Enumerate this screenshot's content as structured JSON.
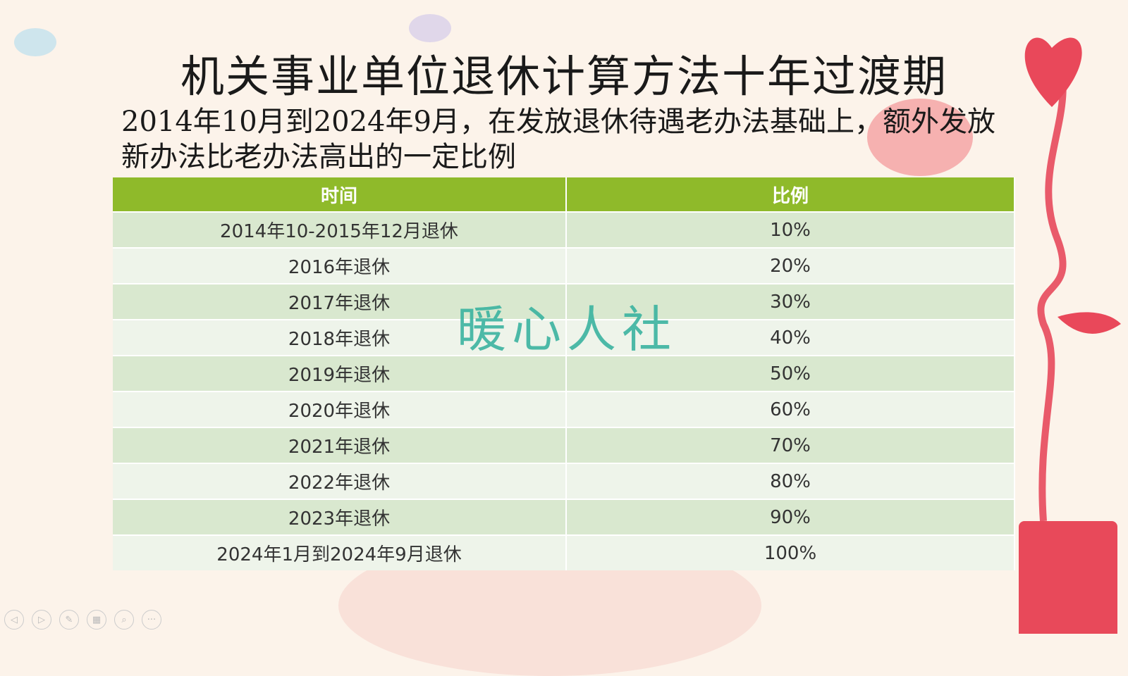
{
  "slide": {
    "title": "机关事业单位退休计算方法十年过渡期",
    "subtitle": "2014年10月到2024年9月，在发放退休待遇老办法基础上，额外发放新办法比老办法高出的一定比例",
    "watermark": "暖心人社",
    "colors": {
      "header": "#8fba2a",
      "row_odd": "#d9e8cf",
      "row_even": "#eef4ea",
      "watermark": "#3bb3a0"
    }
  },
  "table": {
    "headers": [
      "时间",
      "比例"
    ],
    "rows": [
      [
        "2014年10-2015年12月退休",
        "10%"
      ],
      [
        "2016年退休",
        "20%"
      ],
      [
        "2017年退休",
        "30%"
      ],
      [
        "2018年退休",
        "40%"
      ],
      [
        "2019年退休",
        "50%"
      ],
      [
        "2020年退休",
        "60%"
      ],
      [
        "2021年退休",
        "70%"
      ],
      [
        "2022年退休",
        "80%"
      ],
      [
        "2023年退休",
        "90%"
      ],
      [
        "2024年1月到2024年9月退休",
        "100%"
      ]
    ]
  },
  "nav": {
    "icons": [
      "previous-icon",
      "next-icon",
      "pen-icon",
      "slides-icon",
      "zoom-icon",
      "more-icon"
    ],
    "glyphs": [
      "◁",
      "▷",
      "✎",
      "▦",
      "⌕",
      "···"
    ]
  }
}
